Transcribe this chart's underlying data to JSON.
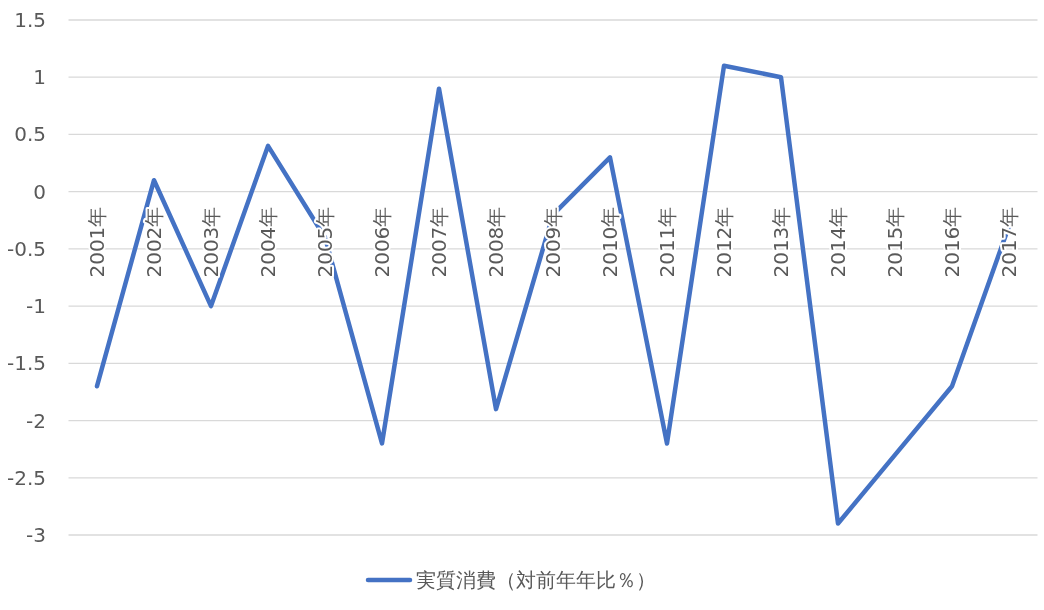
{
  "chart_data": {
    "type": "line",
    "categories": [
      "2001年",
      "2002年",
      "2003年",
      "2004年",
      "2005年",
      "2006年",
      "2007年",
      "2008年",
      "2009年",
      "2010年",
      "2011年",
      "2012年",
      "2013年",
      "2014年",
      "2015年",
      "2016年",
      "2017年"
    ],
    "series": [
      {
        "name": "実質消費（対前年年比％）",
        "color": "#4472c4",
        "values": [
          -1.7,
          0.1,
          -1.0,
          0.4,
          -0.4,
          -2.2,
          0.9,
          -1.9,
          -0.2,
          0.3,
          -2.2,
          1.1,
          1.0,
          -2.9,
          -2.3,
          -1.7,
          -0.3
        ]
      }
    ],
    "ylim": [
      -3,
      1.5
    ],
    "yticks": [
      -3,
      -2.5,
      -2,
      -1.5,
      -1,
      -0.5,
      0,
      0.5,
      1,
      1.5
    ],
    "grid": "y",
    "legend": "bottom"
  }
}
